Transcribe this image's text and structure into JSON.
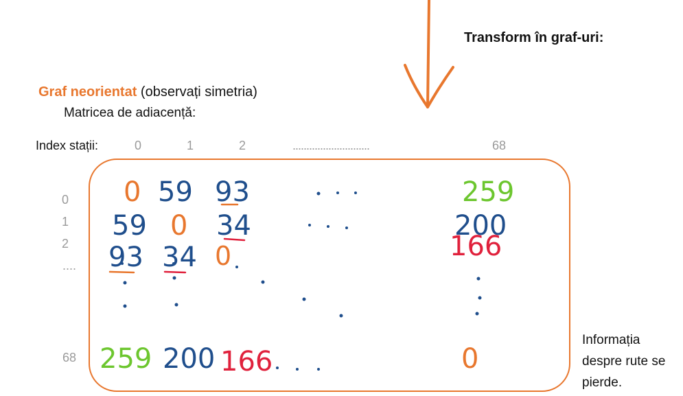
{
  "heading": "Transform în graf-uri:",
  "graph_title": {
    "accent": "Graf neorientat",
    "rest": " (observați simetria)"
  },
  "matrix_label": "Matricea de adiacență:",
  "index_label": "Index stații:",
  "col_indices": [
    "0",
    "1",
    "2",
    "............................",
    "68"
  ],
  "row_indices": [
    "0",
    "1",
    "2",
    "....",
    "68"
  ],
  "matrix": {
    "row0": [
      "0",
      "59",
      "93",
      "259"
    ],
    "row1": [
      "59",
      "0",
      "34",
      "200"
    ],
    "row2": [
      "93",
      "34",
      "0",
      "166"
    ],
    "row68": [
      "259",
      "200",
      "166",
      "0"
    ]
  },
  "note": "Informația despre rute se pierde.",
  "colors": {
    "orange": "#e8772e",
    "blue": "#1f4e8c",
    "green": "#6cc62e",
    "red": "#e0213c",
    "box": "#e8772e"
  }
}
